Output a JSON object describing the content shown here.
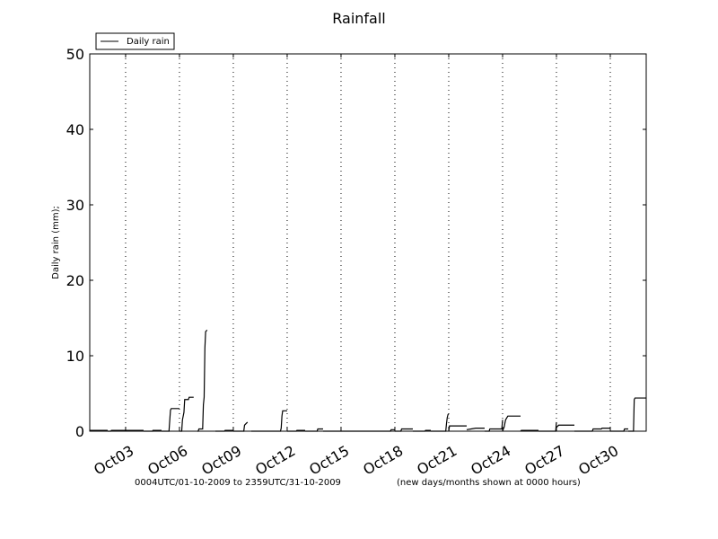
{
  "chart_data": {
    "type": "line",
    "title": "Rainfall",
    "ylabel": "Daily rain  (mm);",
    "xlabel": "0004UTC/01-10-2009 to 2359UTC/31-10-2009",
    "note": "(new days/months shown at 0000 hours)",
    "ylim": [
      0,
      50
    ],
    "yticks": [
      0,
      10,
      20,
      30,
      40,
      50
    ],
    "xlim": [
      "2009-10-01 00:04",
      "2009-11-01 00:00"
    ],
    "xticks": [
      {
        "date": "2009-10-03",
        "label": "Oct03"
      },
      {
        "date": "2009-10-06",
        "label": "Oct06"
      },
      {
        "date": "2009-10-09",
        "label": "Oct09"
      },
      {
        "date": "2009-10-12",
        "label": "Oct12"
      },
      {
        "date": "2009-10-15",
        "label": "Oct15"
      },
      {
        "date": "2009-10-18",
        "label": "Oct18"
      },
      {
        "date": "2009-10-21",
        "label": "Oct21"
      },
      {
        "date": "2009-10-24",
        "label": "Oct24"
      },
      {
        "date": "2009-10-27",
        "label": "Oct27"
      },
      {
        "date": "2009-10-30",
        "label": "Oct30"
      }
    ],
    "grid": "x-dotted",
    "legend_position": "top-left",
    "series": [
      {
        "name": "Daily rain",
        "color": "#000000",
        "segments": [
          [
            [
              "2009-10-01 00:04",
              0.1
            ],
            [
              "2009-10-02 00:00",
              0.1
            ]
          ],
          [
            [
              "2009-10-02 00:00",
              0
            ],
            [
              "2009-10-02 04:00",
              0
            ],
            [
              "2009-10-02 05:00",
              0.1
            ],
            [
              "2009-10-04 00:00",
              0.1
            ]
          ],
          [
            [
              "2009-10-04 00:00",
              0
            ],
            [
              "2009-10-04 12:00",
              0
            ],
            [
              "2009-10-04 12:30",
              0.1
            ],
            [
              "2009-10-05 00:00",
              0.1
            ]
          ],
          [
            [
              "2009-10-05 00:00",
              0
            ],
            [
              "2009-10-05 10:00",
              0
            ],
            [
              "2009-10-05 12:00",
              2.8
            ],
            [
              "2009-10-05 13:00",
              3.0
            ],
            [
              "2009-10-06 00:00",
              3.0
            ]
          ],
          [
            [
              "2009-10-06 00:00",
              0
            ],
            [
              "2009-10-06 03:00",
              0
            ],
            [
              "2009-10-06 04:00",
              1.5
            ],
            [
              "2009-10-06 06:00",
              2.5
            ],
            [
              "2009-10-06 07:00",
              4.2
            ],
            [
              "2009-10-06 12:00",
              4.2
            ],
            [
              "2009-10-06 13:00",
              4.5
            ],
            [
              "2009-10-06 19:00",
              4.5
            ]
          ],
          [
            [
              "2009-10-07 00:00",
              0
            ],
            [
              "2009-10-07 01:00",
              0
            ],
            [
              "2009-10-07 02:00",
              0.3
            ],
            [
              "2009-10-07 07:00",
              0.3
            ],
            [
              "2009-10-07 08:00",
              3.5
            ],
            [
              "2009-10-07 09:00",
              4.5
            ],
            [
              "2009-10-07 10:00",
              11.0
            ],
            [
              "2009-10-07 11:00",
              13.2
            ],
            [
              "2009-10-07 13:00",
              13.4
            ]
          ],
          [
            [
              "2009-10-08 00:00",
              0
            ],
            [
              "2009-10-08 12:00",
              0
            ],
            [
              "2009-10-08 13:00",
              0.1
            ],
            [
              "2009-10-09 00:00",
              0.1
            ]
          ],
          [
            [
              "2009-10-09 00:00",
              0
            ],
            [
              "2009-10-09 14:00",
              0
            ],
            [
              "2009-10-09 15:00",
              0.8
            ],
            [
              "2009-10-09 17:00",
              1.0
            ],
            [
              "2009-10-09 19:00",
              1.2
            ]
          ],
          [
            [
              "2009-10-10 00:00",
              0
            ],
            [
              "2009-10-11 15:00",
              0
            ],
            [
              "2009-10-11 16:00",
              0.4
            ],
            [
              "2009-10-11 17:00",
              2.0
            ],
            [
              "2009-10-11 18:00",
              2.7
            ],
            [
              "2009-10-12 00:00",
              2.7
            ]
          ],
          [
            [
              "2009-10-12 00:00",
              0
            ],
            [
              "2009-10-12 12:00",
              0
            ],
            [
              "2009-10-12 13:00",
              0.1
            ],
            [
              "2009-10-13 00:00",
              0.1
            ]
          ],
          [
            [
              "2009-10-13 00:00",
              0
            ],
            [
              "2009-10-13 16:00",
              0
            ],
            [
              "2009-10-13 17:00",
              0.3
            ],
            [
              "2009-10-14 00:00",
              0.3
            ]
          ],
          [
            [
              "2009-10-14 00:00",
              0
            ],
            [
              "2009-10-17 18:00",
              0
            ],
            [
              "2009-10-17 19:00",
              0.2
            ],
            [
              "2009-10-18 00:00",
              0.2
            ]
          ],
          [
            [
              "2009-10-18 00:00",
              0
            ],
            [
              "2009-10-18 08:00",
              0
            ],
            [
              "2009-10-18 09:00",
              0.3
            ],
            [
              "2009-10-19 00:00",
              0.3
            ]
          ],
          [
            [
              "2009-10-19 00:00",
              0
            ],
            [
              "2009-10-19 16:00",
              0
            ],
            [
              "2009-10-19 17:00",
              0.1
            ],
            [
              "2009-10-20 00:00",
              0.1
            ]
          ],
          [
            [
              "2009-10-20 00:00",
              0
            ],
            [
              "2009-10-20 20:00",
              0
            ],
            [
              "2009-10-20 21:00",
              1.0
            ],
            [
              "2009-10-20 22:00",
              1.8
            ],
            [
              "2009-10-20 23:00",
              2.2
            ],
            [
              "2009-10-21 00:00",
              2.3
            ]
          ],
          [
            [
              "2009-10-21 00:00",
              0
            ],
            [
              "2009-10-21 01:00",
              0.7
            ],
            [
              "2009-10-22 00:00",
              0.7
            ]
          ],
          [
            [
              "2009-10-22 00:00",
              0.2
            ],
            [
              "2009-10-22 06:00",
              0.3
            ],
            [
              "2009-10-22 12:00",
              0.4
            ],
            [
              "2009-10-23 00:00",
              0.4
            ]
          ],
          [
            [
              "2009-10-23 00:00",
              0
            ],
            [
              "2009-10-23 06:00",
              0
            ],
            [
              "2009-10-23 07:00",
              0.3
            ],
            [
              "2009-10-23 23:00",
              0.3
            ],
            [
              "2009-10-24 00:00",
              1.5
            ]
          ],
          [
            [
              "2009-10-24 00:00",
              0
            ],
            [
              "2009-10-24 01:00",
              0.3
            ],
            [
              "2009-10-24 02:00",
              0.5
            ],
            [
              "2009-10-24 04:00",
              1.5
            ],
            [
              "2009-10-24 07:00",
              2.0
            ],
            [
              "2009-10-25 00:00",
              2.0
            ]
          ],
          [
            [
              "2009-10-25 00:00",
              0
            ],
            [
              "2009-10-25 01:00",
              0.1
            ],
            [
              "2009-10-26 00:00",
              0.1
            ]
          ],
          [
            [
              "2009-10-26 00:00",
              0
            ],
            [
              "2009-10-26 23:00",
              0
            ],
            [
              "2009-10-27 00:00",
              1.2
            ]
          ],
          [
            [
              "2009-10-27 00:00",
              0.5
            ],
            [
              "2009-10-27 03:00",
              0.8
            ],
            [
              "2009-10-28 00:00",
              0.8
            ]
          ],
          [
            [
              "2009-10-28 00:00",
              0
            ],
            [
              "2009-10-29 00:00",
              0
            ]
          ],
          [
            [
              "2009-10-29 00:00",
              0
            ],
            [
              "2009-10-29 01:00",
              0.3
            ],
            [
              "2009-10-29 12:00",
              0.3
            ],
            [
              "2009-10-29 13:00",
              0.4
            ],
            [
              "2009-10-30 00:00",
              0.4
            ]
          ],
          [
            [
              "2009-10-30 00:00",
              0
            ],
            [
              "2009-10-30 18:00",
              0
            ],
            [
              "2009-10-30 19:00",
              0.3
            ],
            [
              "2009-10-31 00:00",
              0.3
            ]
          ],
          [
            [
              "2009-10-31 00:00",
              0
            ],
            [
              "2009-10-31 07:00",
              0
            ],
            [
              "2009-10-31 08:00",
              4.2
            ],
            [
              "2009-10-31 09:00",
              4.4
            ],
            [
              "2009-11-01 00:00",
              4.4
            ]
          ]
        ]
      }
    ]
  }
}
